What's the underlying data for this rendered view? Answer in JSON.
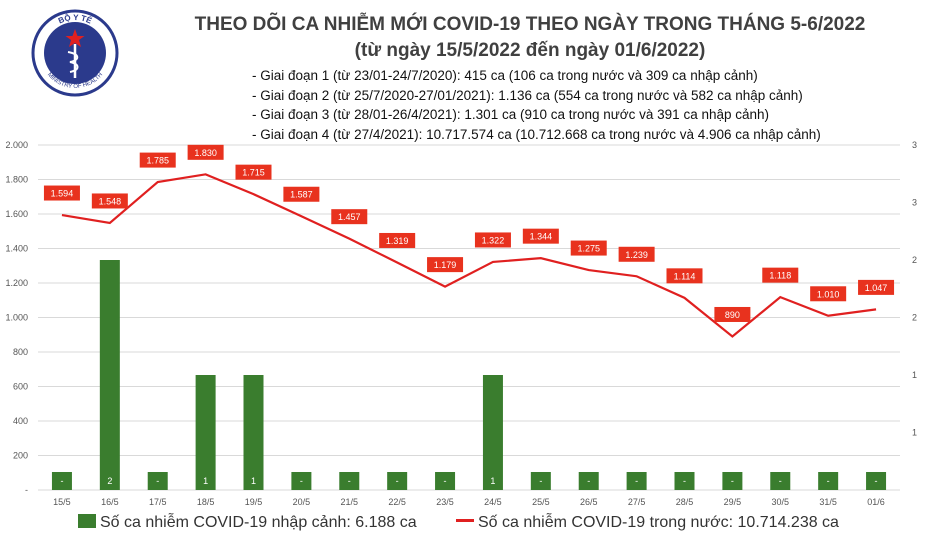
{
  "header": {
    "title_line1": "THEO DÕI CA NHIỄM MỚI COVID-19 THEO NGÀY TRONG THÁNG 5-6/2022",
    "title_line2": "(từ ngày 15/5/2022 đến ngày 01/6/2022)",
    "stages": [
      "- Giai đoạn 1 (từ 23/01-24/7/2020): 415 ca (106 ca trong nước và 309 ca nhập cảnh)",
      "- Giai đoạn 2 (từ 25/7/2020-27/01/2021): 1.136 ca (554 ca trong nước và 582 ca nhập cảnh)",
      "- Giai đoạn 3 (từ 28/01-26/4/2021): 1.301 ca (910 ca trong nước và 391 ca nhập cảnh)",
      "- Giai đoạn 4 (từ 27/4/2021): 10.717.574 ca (10.712.668 ca trong nước và 4.906 ca nhập cảnh)"
    ]
  },
  "logo": {
    "text": "BỘ Y TẾ",
    "subtext": "MINISTRY OF HEALTH"
  },
  "legend": {
    "bar_label": "Số ca nhiễm COVID-19 nhập cảnh: 6.188 ca",
    "line_label": "Số ca nhiễm COVID-19 trong nước: 10.714.238 ca"
  },
  "colors": {
    "bar": "#3a7d2e",
    "line": "#e02020",
    "label_box": "#e8321e",
    "grid": "#d9d9d9"
  },
  "chart_data": {
    "type": "bar+line",
    "categories": [
      "15/5",
      "16/5",
      "17/5",
      "18/5",
      "19/5",
      "20/5",
      "21/5",
      "22/5",
      "23/5",
      "24/5",
      "25/5",
      "26/5",
      "27/5",
      "28/5",
      "29/5",
      "30/5",
      "31/5",
      "01/6"
    ],
    "bar_series": {
      "values": [
        0,
        2,
        0,
        1,
        1,
        0,
        0,
        0,
        0,
        1,
        0,
        0,
        0,
        0,
        0,
        0,
        0,
        0
      ],
      "labels": [
        "-",
        "2",
        "-",
        "1",
        "1",
        "-",
        "-",
        "-",
        "-",
        "1",
        "-",
        "-",
        "-",
        "-",
        "-",
        "-",
        "-",
        "-"
      ],
      "axis": "right"
    },
    "line_series": {
      "values": [
        1594,
        1548,
        1785,
        1830,
        1715,
        1587,
        1457,
        1319,
        1179,
        1322,
        1344,
        1275,
        1239,
        1114,
        890,
        1118,
        1010,
        1047
      ],
      "labels": [
        "1.594",
        "1.548",
        "1.785",
        "1.830",
        "1.715",
        "1.587",
        "1.457",
        "1.319",
        "1.179",
        "1.322",
        "1.344",
        "1.275",
        "1.239",
        "1.114",
        "890",
        "1.118",
        "1.010",
        "1.047"
      ],
      "axis": "left"
    },
    "left_axis": {
      "range": [
        0,
        2000
      ],
      "ticks": [
        0,
        200,
        400,
        600,
        800,
        1000,
        1200,
        1400,
        1600,
        1800,
        2000
      ],
      "tick_labels": [
        "-",
        "200",
        "400",
        "600",
        "800",
        "1.000",
        "1.200",
        "1.400",
        "1.600",
        "1.800",
        "2.000"
      ]
    },
    "right_axis": {
      "range": [
        0,
        3
      ],
      "ticks": [
        0.5,
        1,
        1.5,
        2,
        2.5,
        3
      ],
      "tick_labels": [
        "1",
        "1",
        "2",
        "2",
        "3",
        "3"
      ]
    },
    "grid": true,
    "legend_position": "bottom"
  }
}
